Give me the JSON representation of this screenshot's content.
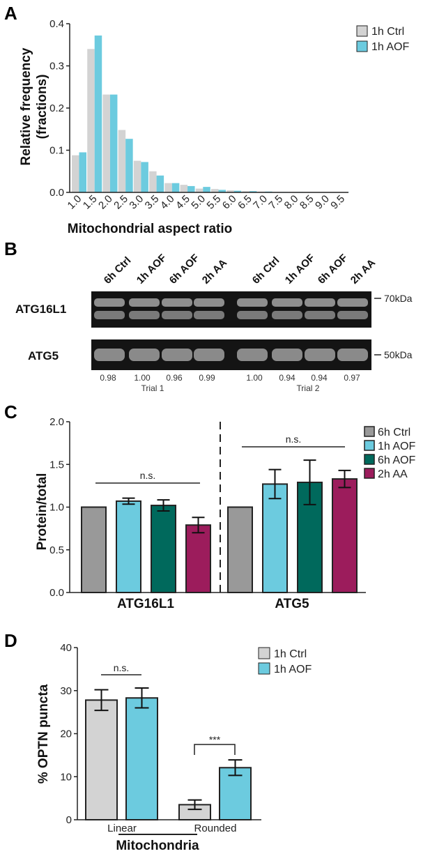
{
  "colors": {
    "ctrl_light": "#d3d3d3",
    "aof_light": "#6ccbdf",
    "ctrl_6h": "#999999",
    "aof_6h": "#00695c",
    "aa_2h": "#9c1c5c",
    "blot_dark": "#141414",
    "blot_band": "#8a8a8a"
  },
  "chart_data": [
    {
      "panel": "A",
      "type": "bar",
      "xlabel": "Mitochondrial aspect ratio",
      "ylabel": "Relative frequency (fractions)",
      "ylabel_lines": [
        "Relative frequency",
        "(fractions)"
      ],
      "ylim": [
        0,
        0.4
      ],
      "yticks": [
        "0.0",
        "0.1",
        "0.2",
        "0.3",
        "0.4"
      ],
      "categories": [
        "1.0",
        "1.5",
        "2.0",
        "2.5",
        "3.0",
        "3.5",
        "4.0",
        "4.5",
        "5.0",
        "5.5",
        "6.0",
        "6.5",
        "7.0",
        "7.5",
        "8.0",
        "8.5",
        "9.0",
        "9.5"
      ],
      "legend_position": "top-right",
      "series": [
        {
          "name": "1h Ctrl",
          "color": "#d3d3d3",
          "values": [
            0.088,
            0.34,
            0.232,
            0.148,
            0.075,
            0.05,
            0.022,
            0.018,
            0.009,
            0.008,
            0.005,
            0.003,
            0.002,
            0.001,
            0.001,
            0.0005,
            0.0005,
            0.0005
          ]
        },
        {
          "name": "1h AOF",
          "color": "#6ccbdf",
          "values": [
            0.095,
            0.372,
            0.232,
            0.127,
            0.072,
            0.04,
            0.022,
            0.015,
            0.013,
            0.006,
            0.004,
            0.003,
            0.002,
            0.001,
            0.001,
            0.0005,
            0.0005,
            0.0005
          ]
        }
      ]
    },
    {
      "panel": "C",
      "type": "bar",
      "ylabel": "Protein/total",
      "ylim": [
        0,
        2.0
      ],
      "yticks": [
        "0.0",
        "0.5",
        "1.0",
        "1.5",
        "2.0"
      ],
      "groups": [
        "ATG16L1",
        "ATG5"
      ],
      "legend_position": "top-right",
      "series": [
        {
          "name": "6h Ctrl",
          "color": "#999999",
          "values": [
            1.0,
            1.0
          ],
          "errors": [
            0,
            0
          ]
        },
        {
          "name": "1h AOF",
          "color": "#6ccbdf",
          "values": [
            1.07,
            1.27
          ],
          "errors": [
            0.035,
            0.17
          ]
        },
        {
          "name": "6h AOF",
          "color": "#00695c",
          "values": [
            1.02,
            1.29
          ],
          "errors": [
            0.065,
            0.26
          ]
        },
        {
          "name": "2h AA",
          "color": "#9c1c5c",
          "values": [
            0.79,
            1.33
          ],
          "errors": [
            0.09,
            0.1
          ]
        }
      ],
      "annotations": [
        "n.s.",
        "n.s."
      ]
    },
    {
      "panel": "D",
      "type": "bar",
      "xlabel": "Mitochondria",
      "ylabel": "% OPTN puncta",
      "ylim": [
        0,
        40
      ],
      "yticks": [
        "0",
        "10",
        "20",
        "30",
        "40"
      ],
      "categories": [
        "Linear",
        "Rounded"
      ],
      "legend_position": "top-right",
      "series": [
        {
          "name": "1h Ctrl",
          "color": "#d3d3d3",
          "values": [
            27.8,
            3.5
          ],
          "errors": [
            2.4,
            1.1
          ]
        },
        {
          "name": "1h AOF",
          "color": "#6ccbdf",
          "values": [
            28.3,
            12.1
          ],
          "errors": [
            2.3,
            1.8
          ]
        }
      ],
      "annotations": [
        "n.s.",
        "***"
      ]
    }
  ],
  "panels": {
    "A": {
      "letter": "A"
    },
    "B": {
      "letter": "B",
      "lanes": [
        "6h Ctrl",
        "1h AOF",
        "6h AOF",
        "2h AA",
        "6h Ctrl",
        "1h AOF",
        "6h AOF",
        "2h AA"
      ],
      "blots": [
        {
          "label": "ATG16L1",
          "marker": "70kDa"
        },
        {
          "label": "ATG5",
          "marker": "50kDa"
        }
      ],
      "quant": [
        "0.98",
        "1.00",
        "0.96",
        "0.99",
        "1.00",
        "0.94",
        "0.94",
        "0.97"
      ],
      "trials": [
        "Trial 1",
        "Trial 2"
      ]
    },
    "C": {
      "letter": "C"
    },
    "D": {
      "letter": "D"
    }
  }
}
